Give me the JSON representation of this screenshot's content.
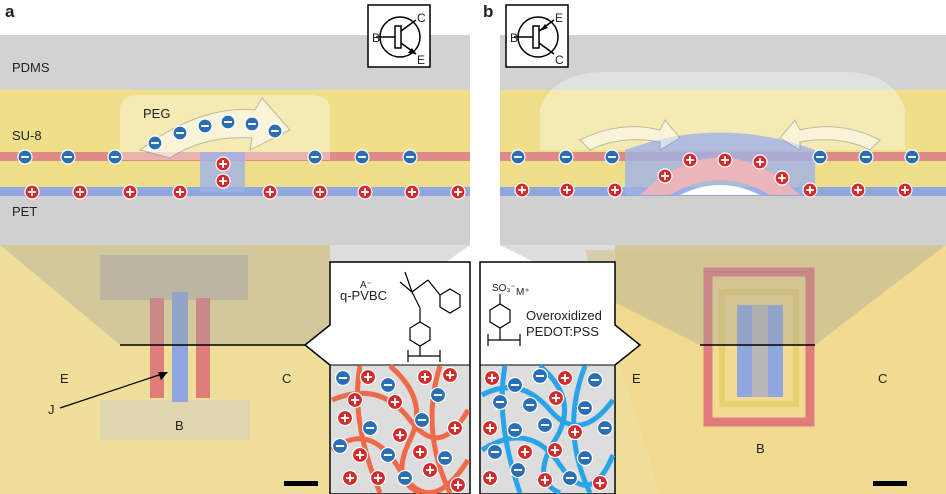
{
  "panel_a": {
    "label": "a",
    "layers": {
      "pdms": "PDMS",
      "su8": "SU-8",
      "peg": "PEG",
      "pet": "PET"
    },
    "symbol": {
      "base": "B",
      "collector": "C",
      "emitter": "E"
    },
    "terminals": {
      "emitter": "E",
      "collector": "C",
      "base": "B",
      "junction": "J"
    }
  },
  "panel_b": {
    "label": "b",
    "symbol": {
      "base": "B",
      "emitter": "E",
      "collector": "C"
    },
    "terminals": {
      "emitter": "E",
      "collector": "C",
      "base": "B"
    }
  },
  "inset_left": {
    "counter_ion": "A⁻",
    "name": "q-PVBC"
  },
  "inset_right": {
    "group": "SO₃⁻",
    "counter_ion": "M⁺",
    "name_line1": "Overoxidized",
    "name_line2": "PEDOT:PSS"
  }
}
